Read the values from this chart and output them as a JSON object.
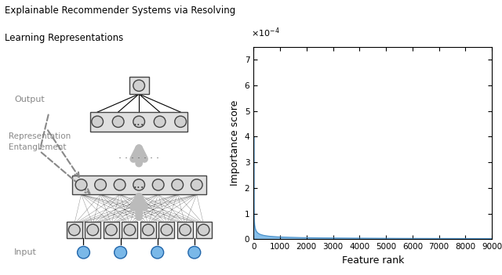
{
  "title_line1": "Explainable Recommender Systems via Resolving",
  "title_line2": "Learning Representations",
  "ylabel": "Importance score",
  "xlabel": "Feature rank",
  "x_max": 9000,
  "y_max": 0.00075,
  "y_ticks": [
    0,
    0.0001,
    0.0002,
    0.0003,
    0.0004,
    0.0005,
    0.0006,
    0.0007
  ],
  "x_ticks": [
    0,
    1000,
    2000,
    3000,
    4000,
    5000,
    6000,
    7000,
    8000,
    9000
  ],
  "curve_color": "#4a90c8",
  "fill_color": "#7ab8e8",
  "background_color": "#ffffff",
  "n_points": 9000,
  "curve_peak": 0.0004,
  "curve_exponent": 0.55,
  "node_color": "#d0d0d0",
  "node_edge": "#444444",
  "blue_node_color": "#7ab8e8",
  "blue_node_edge": "#2266aa",
  "box_color": "#e0e0e0",
  "box_edge": "#444444",
  "arrow_color": "#aaaaaa",
  "dashed_color": "#888888",
  "label_color": "#888888"
}
